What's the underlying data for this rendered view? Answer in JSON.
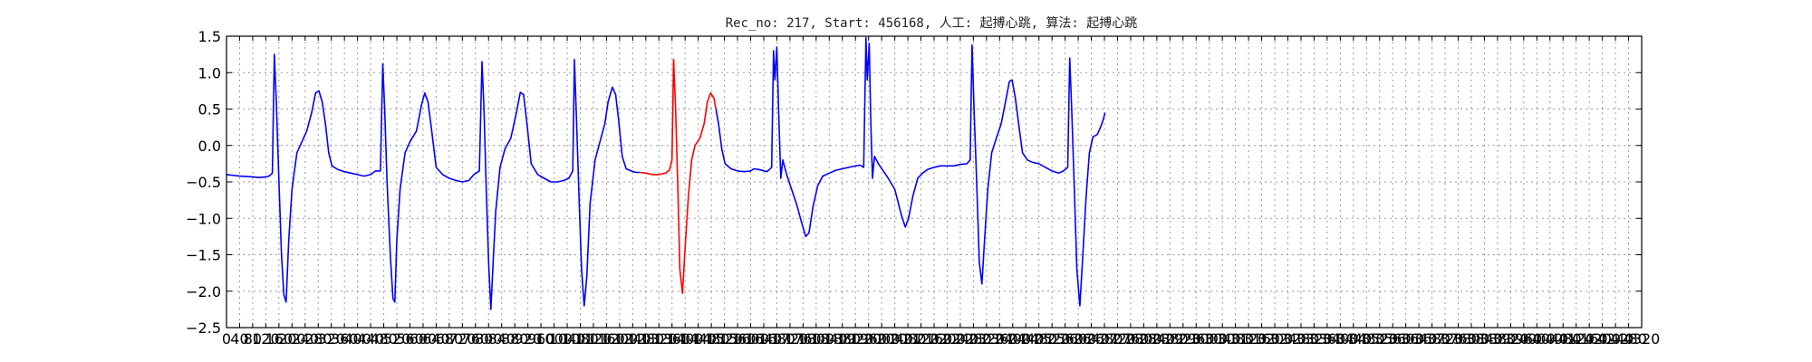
{
  "chart_data": {
    "type": "line",
    "title": "Rec_no: 217, Start: 456168, 人工: 起搏心跳, 算法: 起搏心跳",
    "xlabel": "",
    "ylabel": "",
    "xlim": [
      0,
      4320
    ],
    "ylim": [
      -2.5,
      1.5
    ],
    "grid": true,
    "x_tick_labels": [
      "0",
      "40",
      "80",
      "120",
      "160",
      "200",
      "240",
      "280",
      "320",
      "360",
      "400",
      "440",
      "480",
      "520",
      "560",
      "600",
      "640",
      "680",
      "720",
      "760",
      "800",
      "840",
      "880",
      "920",
      "960",
      "1000",
      "1040",
      "1080",
      "1120",
      "1160",
      "1200",
      "1240",
      "1280",
      "1320",
      "1360",
      "1400",
      "1440",
      "1480",
      "1520",
      "1560",
      "1600",
      "1640",
      "1680",
      "1720",
      "1760",
      "1800",
      "1840",
      "1880",
      "1920",
      "1960",
      "2000",
      "2040",
      "2080",
      "2120",
      "2160",
      "2200",
      "2240",
      "2280",
      "2320",
      "2360",
      "2400",
      "2440",
      "2480",
      "2520",
      "2560",
      "2600",
      "2640",
      "2680",
      "2720",
      "2760",
      "2800",
      "2840",
      "2880",
      "2920",
      "2960",
      "3000",
      "3040",
      "3080",
      "3120",
      "3160",
      "3200",
      "3240",
      "3280",
      "3320",
      "3360",
      "3400",
      "3440",
      "3480",
      "3520",
      "3560",
      "3600",
      "3640",
      "3680",
      "3720",
      "3760",
      "3800",
      "3840",
      "3880",
      "3920",
      "3960",
      "4000",
      "4040",
      "4080",
      "4120",
      "4160",
      "4200",
      "4240",
      "4280",
      "4320"
    ],
    "y_ticks": [
      1.5,
      1.0,
      0.5,
      0.0,
      -0.5,
      -1.0,
      -1.5,
      -2.0,
      -2.5
    ],
    "y_tick_labels": [
      "1.5",
      "1.0",
      "0.5",
      "0.0",
      "−0.5",
      "−1.0",
      "−1.5",
      "−2.0",
      "−2.5"
    ],
    "series": [
      {
        "color": "#0000ff",
        "points": [
          [
            0,
            -0.4
          ],
          [
            40,
            -0.42
          ],
          [
            80,
            -0.43
          ],
          [
            100,
            -0.44
          ],
          [
            120,
            -0.43
          ],
          [
            130,
            -0.42
          ],
          [
            140,
            -0.38
          ],
          [
            146,
            1.25
          ],
          [
            152,
            0.6
          ],
          [
            160,
            -0.5
          ],
          [
            168,
            -1.5
          ],
          [
            175,
            -2.05
          ],
          [
            182,
            -2.15
          ],
          [
            190,
            -1.3
          ],
          [
            200,
            -0.6
          ],
          [
            215,
            -0.1
          ],
          [
            230,
            0.05
          ],
          [
            245,
            0.2
          ],
          [
            260,
            0.45
          ],
          [
            272,
            0.72
          ],
          [
            282,
            0.75
          ],
          [
            292,
            0.6
          ],
          [
            302,
            0.3
          ],
          [
            312,
            -0.1
          ],
          [
            322,
            -0.28
          ],
          [
            340,
            -0.33
          ],
          [
            360,
            -0.36
          ],
          [
            380,
            -0.38
          ],
          [
            400,
            -0.4
          ],
          [
            420,
            -0.42
          ],
          [
            440,
            -0.4
          ],
          [
            455,
            -0.35
          ],
          [
            470,
            -0.35
          ],
          [
            477,
            1.12
          ],
          [
            483,
            0.5
          ],
          [
            490,
            -0.5
          ],
          [
            500,
            -1.5
          ],
          [
            508,
            -2.1
          ],
          [
            514,
            -2.15
          ],
          [
            520,
            -1.3
          ],
          [
            530,
            -0.6
          ],
          [
            545,
            -0.1
          ],
          [
            560,
            0.05
          ],
          [
            580,
            0.2
          ],
          [
            595,
            0.55
          ],
          [
            605,
            0.72
          ],
          [
            615,
            0.6
          ],
          [
            625,
            0.25
          ],
          [
            640,
            -0.3
          ],
          [
            660,
            -0.4
          ],
          [
            680,
            -0.45
          ],
          [
            700,
            -0.48
          ],
          [
            720,
            -0.5
          ],
          [
            740,
            -0.48
          ],
          [
            755,
            -0.4
          ],
          [
            772,
            -0.35
          ],
          [
            780,
            1.15
          ],
          [
            786,
            0.5
          ],
          [
            793,
            -0.6
          ],
          [
            800,
            -1.6
          ],
          [
            807,
            -2.25
          ],
          [
            815,
            -1.5
          ],
          [
            822,
            -0.9
          ],
          [
            835,
            -0.3
          ],
          [
            850,
            -0.05
          ],
          [
            868,
            0.1
          ],
          [
            885,
            0.45
          ],
          [
            897,
            0.73
          ],
          [
            907,
            0.7
          ],
          [
            917,
            0.3
          ],
          [
            930,
            -0.25
          ],
          [
            950,
            -0.4
          ],
          [
            970,
            -0.45
          ],
          [
            990,
            -0.5
          ],
          [
            1010,
            -0.5
          ],
          [
            1030,
            -0.48
          ],
          [
            1045,
            -0.45
          ],
          [
            1057,
            -0.35
          ],
          [
            1062,
            1.18
          ],
          [
            1068,
            0.4
          ],
          [
            1076,
            -0.7
          ],
          [
            1084,
            -1.7
          ],
          [
            1092,
            -2.2
          ],
          [
            1100,
            -1.8
          ],
          [
            1110,
            -0.8
          ],
          [
            1125,
            -0.2
          ],
          [
            1140,
            0.05
          ],
          [
            1155,
            0.3
          ],
          [
            1165,
            0.6
          ],
          [
            1178,
            0.8
          ],
          [
            1188,
            0.7
          ],
          [
            1197,
            0.35
          ],
          [
            1208,
            -0.15
          ],
          [
            1220,
            -0.32
          ],
          [
            1235,
            -0.35
          ],
          [
            1250,
            -0.37
          ],
          [
            1262,
            -0.37
          ]
        ]
      },
      {
        "color": "#ff0000",
        "points": [
          [
            1262,
            -0.37
          ],
          [
            1280,
            -0.38
          ],
          [
            1300,
            -0.4
          ],
          [
            1320,
            -0.4
          ],
          [
            1340,
            -0.38
          ],
          [
            1352,
            -0.34
          ],
          [
            1360,
            -0.2
          ],
          [
            1365,
            1.18
          ],
          [
            1371,
            0.5
          ],
          [
            1378,
            -0.6
          ],
          [
            1384,
            -1.7
          ],
          [
            1392,
            -2.03
          ],
          [
            1400,
            -1.4
          ],
          [
            1410,
            -0.7
          ],
          [
            1420,
            -0.2
          ],
          [
            1430,
            0.0
          ],
          [
            1445,
            0.1
          ],
          [
            1458,
            0.3
          ],
          [
            1468,
            0.6
          ],
          [
            1478,
            0.72
          ],
          [
            1488,
            0.65
          ],
          [
            1494,
            0.5
          ]
        ]
      },
      {
        "color": "#0000ff",
        "points": [
          [
            1494,
            0.5
          ],
          [
            1502,
            0.3
          ],
          [
            1512,
            -0.05
          ],
          [
            1522,
            -0.25
          ],
          [
            1540,
            -0.32
          ],
          [
            1560,
            -0.35
          ],
          [
            1580,
            -0.36
          ],
          [
            1600,
            -0.35
          ],
          [
            1610,
            -0.32
          ],
          [
            1625,
            -0.33
          ],
          [
            1650,
            -0.36
          ],
          [
            1664,
            -0.3
          ],
          [
            1670,
            1.3
          ],
          [
            1674,
            0.9
          ],
          [
            1680,
            1.35
          ],
          [
            1686,
            0.4
          ],
          [
            1692,
            -0.45
          ],
          [
            1698,
            -0.2
          ],
          [
            1710,
            -0.4
          ],
          [
            1725,
            -0.6
          ],
          [
            1740,
            -0.8
          ],
          [
            1755,
            -1.05
          ],
          [
            1768,
            -1.25
          ],
          [
            1778,
            -1.2
          ],
          [
            1790,
            -0.85
          ],
          [
            1805,
            -0.55
          ],
          [
            1820,
            -0.42
          ],
          [
            1840,
            -0.38
          ],
          [
            1860,
            -0.34
          ],
          [
            1880,
            -0.32
          ],
          [
            1900,
            -0.3
          ],
          [
            1920,
            -0.28
          ],
          [
            1935,
            -0.27
          ],
          [
            1945,
            -0.3
          ],
          [
            1952,
            1.48
          ],
          [
            1956,
            0.9
          ],
          [
            1962,
            1.4
          ],
          [
            1967,
            0.3
          ],
          [
            1972,
            -0.45
          ],
          [
            1978,
            -0.15
          ],
          [
            1990,
            -0.25
          ],
          [
            2005,
            -0.35
          ],
          [
            2020,
            -0.45
          ],
          [
            2040,
            -0.6
          ],
          [
            2060,
            -0.95
          ],
          [
            2072,
            -1.12
          ],
          [
            2082,
            -1.0
          ],
          [
            2095,
            -0.7
          ],
          [
            2110,
            -0.45
          ],
          [
            2125,
            -0.38
          ],
          [
            2140,
            -0.33
          ],
          [
            2160,
            -0.3
          ],
          [
            2180,
            -0.28
          ],
          [
            2200,
            -0.28
          ],
          [
            2220,
            -0.28
          ],
          [
            2240,
            -0.26
          ],
          [
            2260,
            -0.25
          ],
          [
            2270,
            -0.2
          ],
          [
            2276,
            1.38
          ],
          [
            2282,
            0.5
          ],
          [
            2290,
            -0.5
          ],
          [
            2298,
            -1.6
          ],
          [
            2306,
            -1.9
          ],
          [
            2314,
            -1.3
          ],
          [
            2324,
            -0.6
          ],
          [
            2336,
            -0.1
          ],
          [
            2350,
            0.1
          ],
          [
            2365,
            0.3
          ],
          [
            2378,
            0.6
          ],
          [
            2390,
            0.88
          ],
          [
            2398,
            0.9
          ],
          [
            2408,
            0.65
          ],
          [
            2418,
            0.3
          ],
          [
            2430,
            -0.1
          ],
          [
            2445,
            -0.2
          ],
          [
            2460,
            -0.23
          ],
          [
            2480,
            -0.25
          ],
          [
            2500,
            -0.3
          ],
          [
            2520,
            -0.35
          ],
          [
            2540,
            -0.38
          ],
          [
            2555,
            -0.35
          ],
          [
            2568,
            -0.3
          ],
          [
            2574,
            1.2
          ],
          [
            2580,
            0.5
          ],
          [
            2588,
            -0.6
          ],
          [
            2596,
            -1.7
          ],
          [
            2605,
            -2.2
          ],
          [
            2614,
            -1.5
          ],
          [
            2624,
            -0.7
          ],
          [
            2634,
            -0.1
          ],
          [
            2645,
            0.12
          ],
          [
            2658,
            0.15
          ],
          [
            2668,
            0.25
          ],
          [
            2676,
            0.35
          ],
          [
            2682,
            0.45
          ]
        ]
      }
    ]
  }
}
